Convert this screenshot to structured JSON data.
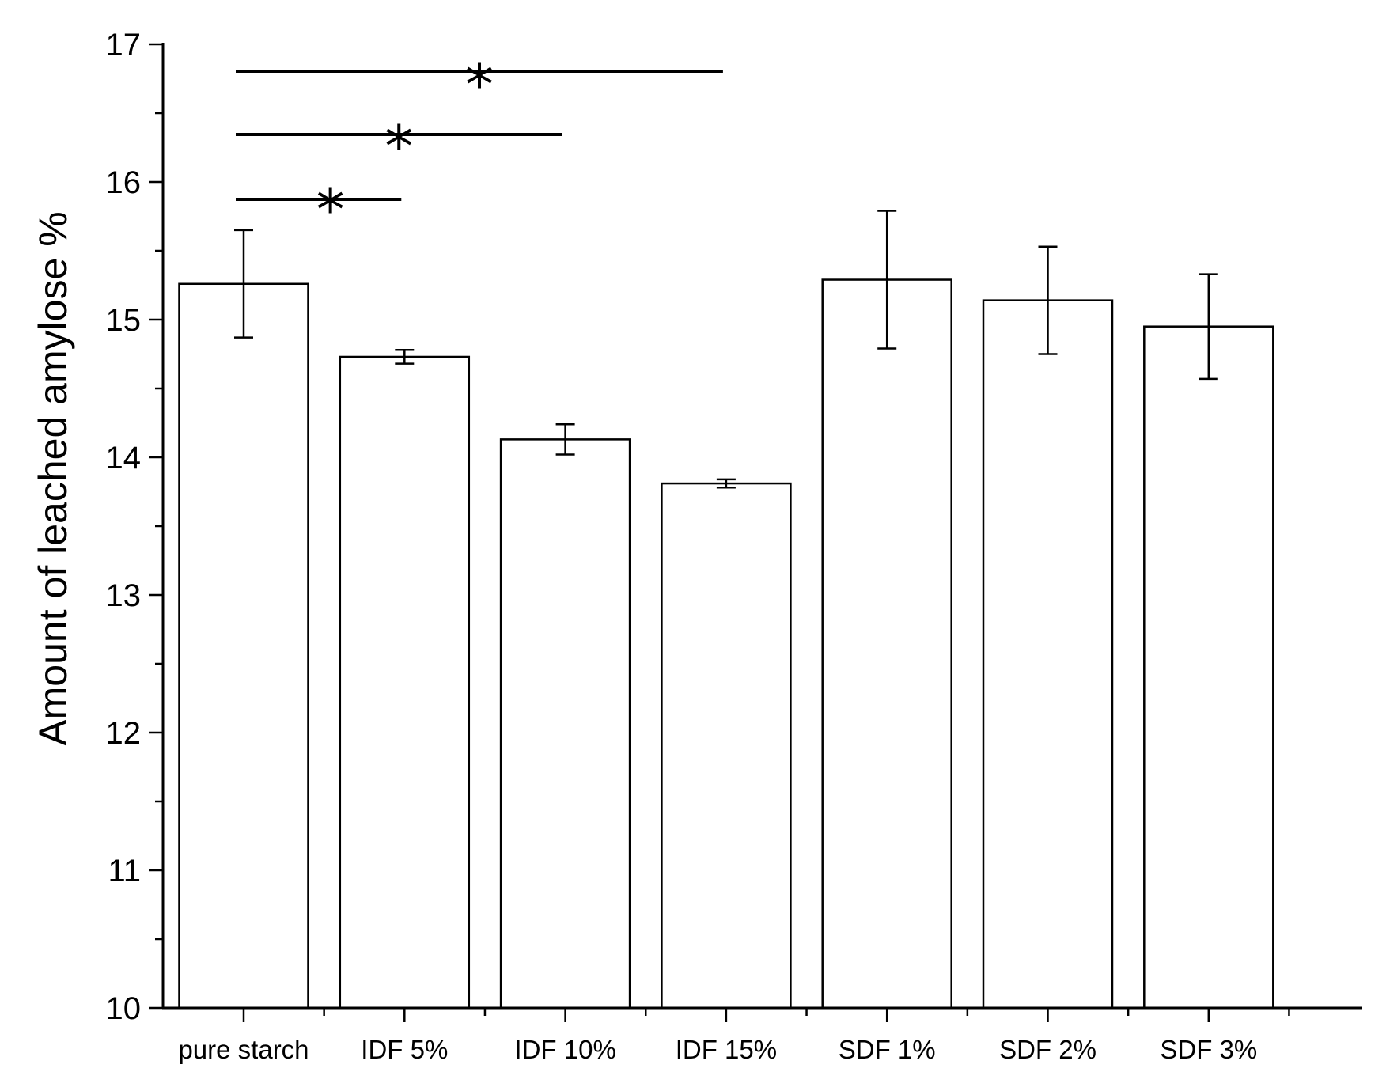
{
  "chart_data": {
    "type": "bar",
    "title": "",
    "xlabel": "",
    "ylabel": "Amount of leached amylose %",
    "ylim": [
      10,
      17
    ],
    "yticks": [
      10,
      11,
      12,
      13,
      14,
      15,
      16,
      17
    ],
    "grid": false,
    "legend": "none",
    "bar_color": "#ffffff",
    "edge_color": "#000000",
    "categories": [
      "pure starch",
      "IDF 5%",
      "IDF 10%",
      "IDF 15%",
      "SDF 1%",
      "SDF 2%",
      "SDF 3%"
    ],
    "values": [
      15.26,
      14.73,
      14.13,
      13.81,
      15.29,
      15.14,
      14.95
    ],
    "errors": [
      0.39,
      0.05,
      0.11,
      0.03,
      0.5,
      0.39,
      0.38
    ],
    "significance": [
      {
        "from": "pure starch",
        "to": "IDF 5%",
        "label": "*"
      },
      {
        "from": "pure starch",
        "to": "IDF 10%",
        "label": "*"
      },
      {
        "from": "pure starch",
        "to": "IDF 15%",
        "label": "*"
      }
    ]
  }
}
